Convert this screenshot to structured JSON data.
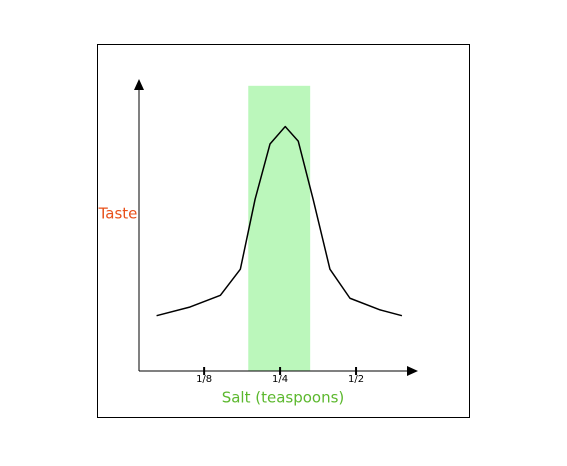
{
  "chart_data": {
    "type": "line",
    "x_label": "Salt (teaspoons)",
    "y_label": "Taste",
    "x": [
      0.081,
      0.11,
      0.145,
      0.174,
      0.199,
      0.228,
      0.262,
      0.295,
      0.338,
      0.394,
      0.473,
      0.623,
      0.76
    ],
    "series": [
      {
        "color": "#000000",
        "values": [
          1.9,
          2.2,
          2.6,
          3.5,
          5.9,
          7.8,
          8.4,
          7.9,
          5.9,
          3.5,
          2.5,
          2.1,
          1.9
        ]
      }
    ],
    "xlim": [
      0.069,
      0.872
    ],
    "ylim": [
      0,
      10
    ],
    "xscale": "log",
    "xticks": [
      {
        "value": 0.125,
        "label": "1/8"
      },
      {
        "value": 0.25,
        "label": "1/4"
      },
      {
        "value": 0.5,
        "label": "1/2"
      }
    ],
    "highlight": {
      "x": [
        0.187,
        0.329
      ],
      "y": [
        0,
        9.8
      ],
      "color": "#bbf7bb"
    },
    "x_label_color": "#5cb82e",
    "y_label_color": "#e8501a"
  }
}
